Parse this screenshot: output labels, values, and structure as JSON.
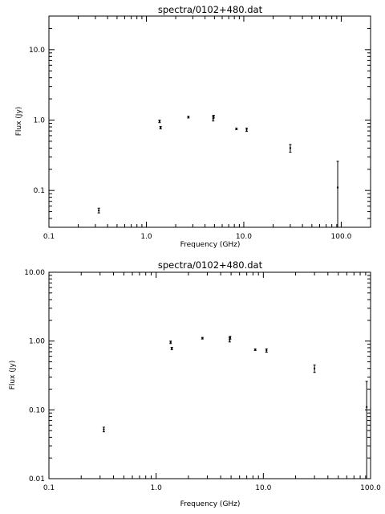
{
  "chart_data": [
    {
      "type": "scatter",
      "title": "spectra/0102+480.dat",
      "xlabel": "Frequency (GHz)",
      "ylabel": "Flux (Jy)",
      "xscale": "log",
      "yscale": "log",
      "xlim": [
        0.1,
        200
      ],
      "ylim": [
        0.03,
        30
      ],
      "xticks": [
        {
          "value": 0.1,
          "label": "0.1"
        },
        {
          "value": 1,
          "label": "1.0"
        },
        {
          "value": 10,
          "label": "10.0"
        },
        {
          "value": 100,
          "label": "100.0"
        }
      ],
      "yticks": [
        {
          "value": 0.1,
          "label": "0.1"
        },
        {
          "value": 1,
          "label": "1.0"
        },
        {
          "value": 10,
          "label": "10.0"
        }
      ],
      "grid": false,
      "series": [
        {
          "points": [
            {
              "x": 0.325,
              "y": 0.052,
              "err": 0.004
            },
            {
              "x": 1.365,
              "y": 0.96,
              "err": 0.04
            },
            {
              "x": 1.4,
              "y": 0.78,
              "err": 0.03
            },
            {
              "x": 2.7,
              "y": 1.1,
              "err": 0.03
            },
            {
              "x": 4.85,
              "y": 1.05,
              "err": 0.08
            },
            {
              "x": 4.9,
              "y": 1.12,
              "err": 0.05
            },
            {
              "x": 8.4,
              "y": 0.75,
              "err": 0.02
            },
            {
              "x": 10.7,
              "y": 0.73,
              "err": 0.04
            },
            {
              "x": 30.0,
              "y": 0.4,
              "err": 0.05
            },
            {
              "x": 92.0,
              "y": 0.11,
              "err": 0.15
            }
          ]
        }
      ]
    },
    {
      "type": "scatter",
      "title": "spectra/0102+480.dat",
      "xlabel": "Frequency (GHz)",
      "ylabel": "Flux (Jy)",
      "xscale": "log",
      "yscale": "log",
      "xlim": [
        0.1,
        100
      ],
      "ylim": [
        0.01,
        10
      ],
      "xticks": [
        {
          "value": 0.1,
          "label": "0.1"
        },
        {
          "value": 1,
          "label": "1.0"
        },
        {
          "value": 10,
          "label": "10.0"
        },
        {
          "value": 100,
          "label": "100.0"
        }
      ],
      "yticks": [
        {
          "value": 0.01,
          "label": "0.01"
        },
        {
          "value": 0.1,
          "label": "0.10"
        },
        {
          "value": 1,
          "label": "1.00"
        },
        {
          "value": 10,
          "label": "10.00"
        }
      ],
      "grid": false,
      "series": [
        {
          "points": [
            {
              "x": 0.325,
              "y": 0.052,
              "err": 0.004
            },
            {
              "x": 1.365,
              "y": 0.96,
              "err": 0.04
            },
            {
              "x": 1.4,
              "y": 0.78,
              "err": 0.03
            },
            {
              "x": 2.7,
              "y": 1.1,
              "err": 0.03
            },
            {
              "x": 4.85,
              "y": 1.05,
              "err": 0.08
            },
            {
              "x": 4.9,
              "y": 1.12,
              "err": 0.05
            },
            {
              "x": 8.4,
              "y": 0.75,
              "err": 0.02
            },
            {
              "x": 10.7,
              "y": 0.73,
              "err": 0.04
            },
            {
              "x": 30.0,
              "y": 0.4,
              "err": 0.05
            },
            {
              "x": 92.0,
              "y": 0.11,
              "err": 0.15
            }
          ]
        }
      ]
    }
  ]
}
